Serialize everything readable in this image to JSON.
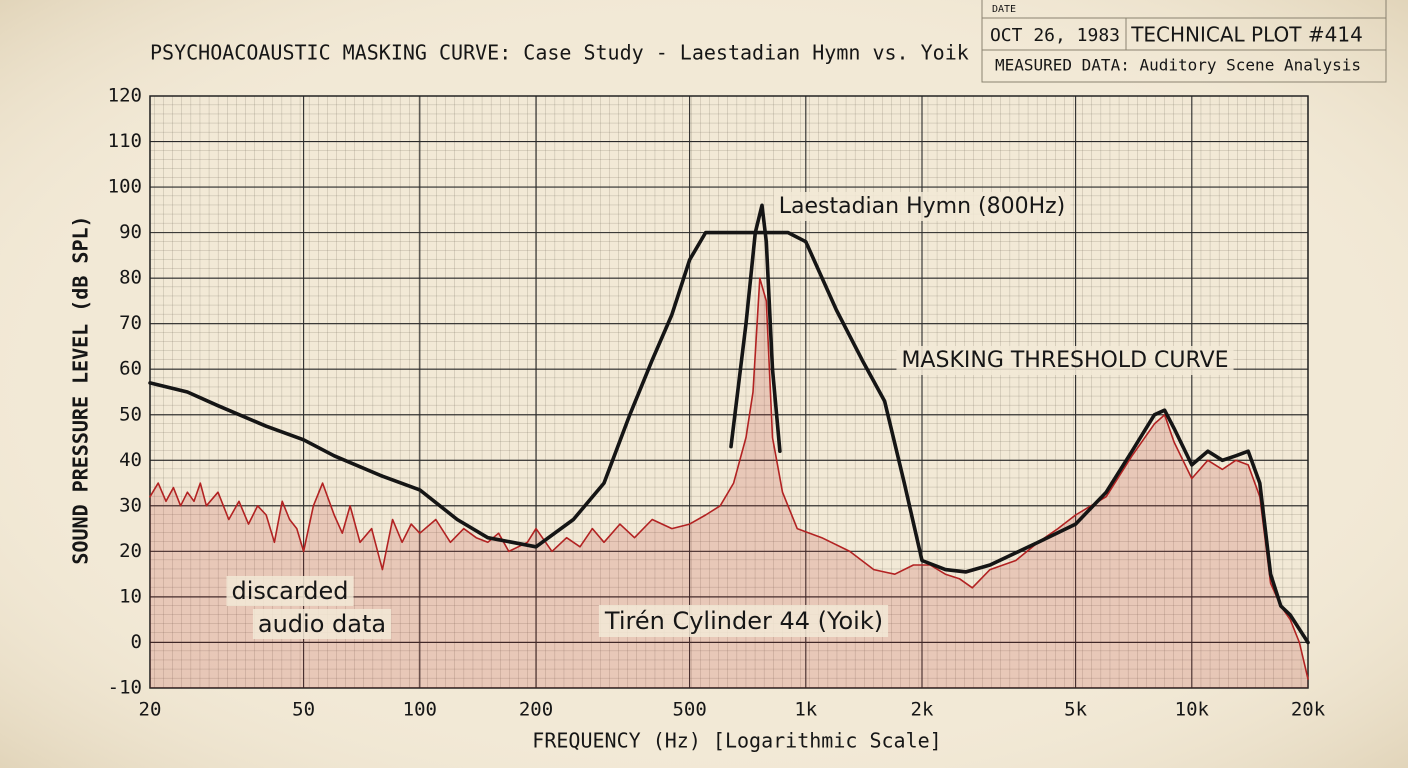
{
  "stamp": {
    "date_label": "DATE",
    "date": "OCT 26, 1983",
    "plot_id": "TECHNICAL PLOT #414",
    "subtitle": "MEASURED DATA: Auditory Scene Analysis"
  },
  "chart_data": {
    "type": "line",
    "title": "PSYCHOACOAUSTIC MASKING CURVE: Case Study - Laestadian Hymn vs. Yoik",
    "x_label": "FREQUENCY (Hz) [Logarithmic Scale]",
    "y_label": "SOUND PRESSURE LEVEL (dB SPL)",
    "log_x": true,
    "grid": true,
    "xlim": [
      20,
      20000
    ],
    "ylim": [
      -10,
      120
    ],
    "xticks": [
      20,
      50,
      100,
      200,
      500,
      {
        "value": 1000,
        "label": "1k"
      },
      {
        "value": 2000,
        "label": "2k"
      },
      {
        "value": 5000,
        "label": "5k"
      },
      {
        "value": 10000,
        "label": "10k"
      },
      {
        "value": 20000,
        "label": "20k"
      }
    ],
    "yticks": [
      -10,
      0,
      10,
      20,
      30,
      40,
      50,
      60,
      70,
      80,
      90,
      100,
      110,
      120
    ],
    "annotations": [
      {
        "lines": [
          "discarded",
          "audio data"
        ]
      }
    ],
    "series": [
      {
        "name": "MASKING THRESHOLD CURVE",
        "color": "#151515",
        "x": [
          20,
          25,
          30,
          40,
          50,
          60,
          80,
          100,
          125,
          150,
          200,
          250,
          300,
          350,
          400,
          450,
          500,
          550,
          700,
          900,
          1000,
          1200,
          1400,
          1600,
          1800,
          2000,
          2300,
          2600,
          3000,
          4000,
          5000,
          6000,
          7000,
          8000,
          8500,
          9000,
          10000,
          11000,
          12000,
          13000,
          14000,
          15000,
          16000,
          17000,
          18000,
          20000
        ],
        "values": [
          57,
          55,
          52,
          47.5,
          44.5,
          41,
          36.5,
          33.5,
          27,
          23,
          21,
          27,
          35,
          50,
          62,
          72,
          84,
          90,
          90,
          90,
          88,
          73,
          62,
          53,
          35,
          18,
          16,
          15.5,
          17,
          22,
          26,
          33,
          42,
          50,
          51,
          47,
          39,
          42,
          40,
          41,
          42,
          35,
          15,
          8,
          6,
          0
        ]
      },
      {
        "name": "Laestadian Hymn (800Hz)",
        "color": "#151515",
        "x": [
          640,
          700,
          740,
          770,
          790,
          820,
          857
        ],
        "values": [
          43,
          70,
          90,
          96,
          88,
          60,
          42
        ]
      },
      {
        "name": "Tirén Cylinder 44 (Yoik)",
        "color": "#b22222",
        "fill": true,
        "x": [
          20,
          21,
          22,
          23,
          24,
          25,
          26,
          27,
          28,
          30,
          32,
          34,
          36,
          38,
          40,
          42,
          44,
          46,
          48,
          50,
          53,
          56,
          60,
          63,
          66,
          70,
          75,
          80,
          85,
          90,
          95,
          100,
          110,
          120,
          130,
          140,
          150,
          160,
          170,
          180,
          190,
          200,
          220,
          240,
          260,
          280,
          300,
          330,
          360,
          400,
          450,
          500,
          550,
          600,
          650,
          700,
          730,
          760,
          790,
          820,
          870,
          950,
          1100,
          1300,
          1500,
          1700,
          1900,
          2100,
          2300,
          2500,
          2700,
          3000,
          3500,
          4000,
          4500,
          5000,
          6000,
          7000,
          8000,
          8500,
          9000,
          10000,
          11000,
          12000,
          13000,
          14000,
          15000,
          16000,
          17000,
          18000,
          19000,
          20000
        ],
        "values": [
          32,
          35,
          31,
          34,
          30,
          33,
          31,
          35,
          30,
          33,
          27,
          31,
          26,
          30,
          28,
          22,
          31,
          27,
          25,
          20,
          30,
          35,
          28,
          24,
          30,
          22,
          25,
          16,
          27,
          22,
          26,
          24,
          27,
          22,
          25,
          23,
          22,
          24,
          20,
          21,
          22,
          25,
          20,
          23,
          21,
          25,
          22,
          26,
          23,
          27,
          25,
          26,
          28,
          30,
          35,
          45,
          55,
          80,
          75,
          45,
          33,
          25,
          23,
          20,
          16,
          15,
          17,
          17,
          15,
          14,
          12,
          16,
          18,
          22,
          25,
          28,
          32,
          41,
          48,
          50,
          44,
          36,
          40,
          38,
          40,
          39,
          32,
          13,
          8,
          5,
          0,
          -8
        ]
      }
    ]
  }
}
